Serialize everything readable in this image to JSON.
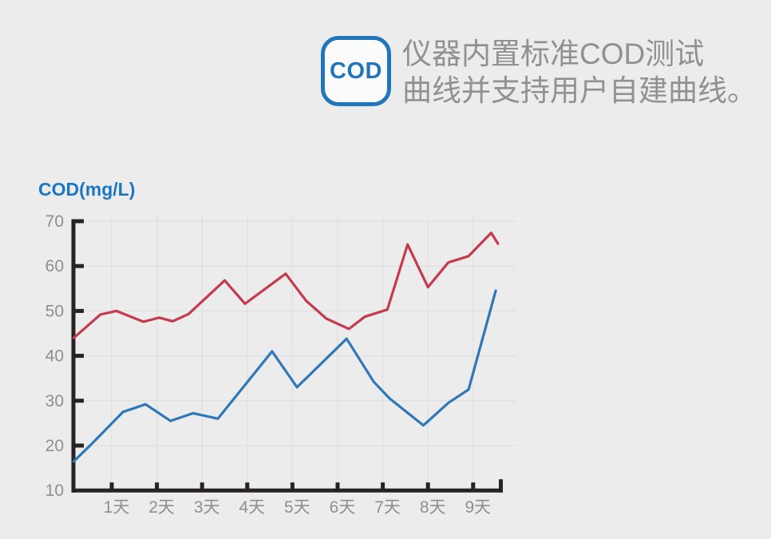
{
  "page": {
    "background_color": "#ececec"
  },
  "header": {
    "badge_label": "COD",
    "badge_color": "#2176bb",
    "caption_line1": "仪器内置标准COD测试",
    "caption_line2": "曲线并支持用户自建曲线。",
    "caption_color": "#919191"
  },
  "chart_data": {
    "type": "line",
    "title": "COD(mg/L)",
    "title_color": "#1d77c0",
    "xlabel": "",
    "ylabel": "COD(mg/L)",
    "x_tick_labels": [
      "1天",
      "2天",
      "3天",
      "4天",
      "5天",
      "6天",
      "7天",
      "8天",
      "9天"
    ],
    "x_tick_days": [
      1,
      2,
      3,
      4,
      5,
      6,
      7,
      8,
      9
    ],
    "yticks": [
      10,
      20,
      30,
      40,
      50,
      60,
      70
    ],
    "ylim": [
      10,
      70
    ],
    "xlim_days": [
      0.16,
      9.65
    ],
    "grid": true,
    "legend": "none",
    "axis_color": "#272322",
    "grid_color": "#e0e0e0",
    "tick_label_color": "#8f8f8f",
    "series": [
      {
        "name": "red-curve",
        "color": "#c53a4e",
        "points": [
          [
            0.16,
            44
          ],
          [
            0.75,
            49.2
          ],
          [
            1.1,
            50
          ],
          [
            1.7,
            47.6
          ],
          [
            2.05,
            48.5
          ],
          [
            2.35,
            47.7
          ],
          [
            2.7,
            49.3
          ],
          [
            3.5,
            56.8
          ],
          [
            3.95,
            51.6
          ],
          [
            4.85,
            58.3
          ],
          [
            5.3,
            52.3
          ],
          [
            5.75,
            48.3
          ],
          [
            6.25,
            46
          ],
          [
            6.6,
            48.7
          ],
          [
            7.1,
            50.3
          ],
          [
            7.55,
            64.8
          ],
          [
            8.0,
            55.3
          ],
          [
            8.45,
            60.8
          ],
          [
            8.9,
            62.2
          ],
          [
            9.4,
            67.4
          ],
          [
            9.55,
            65
          ]
        ]
      },
      {
        "name": "blue-curve",
        "color": "#2f78b8",
        "points": [
          [
            0.16,
            16.5
          ],
          [
            0.55,
            20.3
          ],
          [
            1.25,
            27.5
          ],
          [
            1.75,
            29.2
          ],
          [
            2.3,
            25.5
          ],
          [
            2.8,
            27.2
          ],
          [
            3.35,
            26
          ],
          [
            4.55,
            41
          ],
          [
            5.1,
            33
          ],
          [
            6.2,
            43.8
          ],
          [
            6.8,
            34.2
          ],
          [
            7.15,
            30.5
          ],
          [
            7.9,
            24.5
          ],
          [
            8.45,
            29.5
          ],
          [
            8.9,
            32.5
          ],
          [
            9.5,
            54.5
          ]
        ]
      }
    ]
  }
}
